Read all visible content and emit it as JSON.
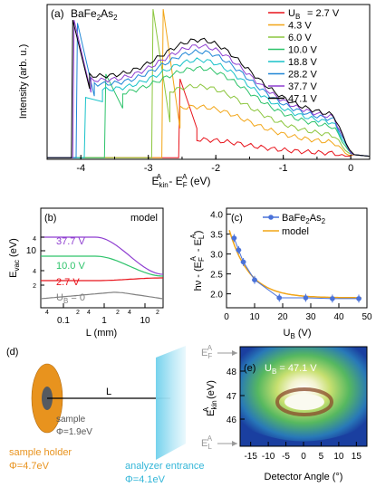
{
  "panel_a": {
    "tag": "(a)",
    "compound": "BaFe",
    "compound_sub1": "2",
    "compound_mid": "As",
    "compound_sub2": "2",
    "ylabel": "Intensity (arb. u.)",
    "xlabel": "E",
    "xlabel_sub": "kin",
    "xlabel_sup": "A",
    "xlabel_mid": " - E",
    "xlabel_sub2": "F",
    "xlabel_sup2": "A",
    "xlabel_unit": " (eV)",
    "xticks": [
      "-4",
      "-3",
      "-2",
      "-1",
      "0"
    ],
    "legend_title_prefix": "U",
    "legend_title_sub": "B",
    "legend": [
      {
        "label": "=  2.7 V",
        "color": "#e8131b"
      },
      {
        "label": "4.3 V",
        "color": "#f2a516"
      },
      {
        "label": "6.0 V",
        "color": "#8cc63e"
      },
      {
        "label": "10.0 V",
        "color": "#2ec36b"
      },
      {
        "label": "18.8 V",
        "color": "#18c2c9"
      },
      {
        "label": "28.2 V",
        "color": "#1f86d6"
      },
      {
        "label": "37.7 V",
        "color": "#8f3fd1"
      },
      {
        "label": "47.1 V",
        "color": "#000000"
      }
    ]
  },
  "panel_b": {
    "tag": "(b)",
    "model_label": "model",
    "ylabel": "E",
    "ylabel_sub": "vac",
    "ylabel_unit": " (eV)",
    "xlabel": "L (mm)",
    "yticks": [
      "10"
    ],
    "yminor": [
      "2",
      "4",
      "2",
      "4"
    ],
    "xticks": [
      "0.1",
      "1",
      "10"
    ],
    "xminor": [
      "4",
      "2",
      "4",
      "2",
      "4",
      "2"
    ],
    "curves": [
      {
        "label": "37.7 V",
        "color": "#8f3fd1"
      },
      {
        "label": "10.0 V",
        "color": "#2ec36b"
      },
      {
        "label": "2.7 V",
        "color": "#e8131b"
      },
      {
        "label": "U",
        "label_sub": "B",
        "label_rest": " = 0",
        "color": "#808080"
      }
    ]
  },
  "panel_c": {
    "tag": "(c)",
    "ylabel": "hν - (E",
    "ylabel_sub1": "F",
    "ylabel_sup1": "A",
    "ylabel_mid": " - E",
    "ylabel_sub2": "L",
    "ylabel_sup2": "A",
    "ylabel_end": ")",
    "xlabel": "U",
    "xlabel_sub": "B",
    "xlabel_unit": " (V)",
    "yticks": [
      "2.0",
      "2.5",
      "3.0",
      "3.5",
      "4.0"
    ],
    "xticks": [
      "0",
      "10",
      "20",
      "30",
      "40",
      "50"
    ],
    "legend_data": "BaFe",
    "legend_data_sub1": "2",
    "legend_data_mid": "As",
    "legend_data_sub2": "2",
    "legend_model": "model",
    "data_color": "#4a72d9",
    "model_color": "#f2a516"
  },
  "panel_d": {
    "tag": "(d)",
    "L_label": "L",
    "sample_label": "sample",
    "sample_phi": "Φ=1.9eV",
    "holder_label": "sample holder",
    "holder_phi": "Φ=4.7eV",
    "analyzer_label": "analyzer entrance",
    "analyzer_phi": "Φ=4.1eV",
    "holder_color": "#e8931e",
    "analyzer_color": "#33b6d8"
  },
  "panel_e": {
    "tag": "(e)",
    "ub_label": "U",
    "ub_sub": "B",
    "ub_value": " =  47.1 V",
    "ylabel": "E",
    "ylabel_sub": "kin",
    "ylabel_sup": "A",
    "ylabel_unit": " (eV)",
    "yticks": [
      "48",
      "47",
      "46"
    ],
    "xticks": [
      "-15",
      "-10",
      "-5",
      "0",
      "5",
      "10",
      "15"
    ],
    "xlabel": "Detector Angle (°)",
    "ef_label": "E",
    "ef_sub": "F",
    "ef_sup": "A",
    "el_label": "E",
    "el_sub": "L",
    "el_sup": "A"
  }
}
